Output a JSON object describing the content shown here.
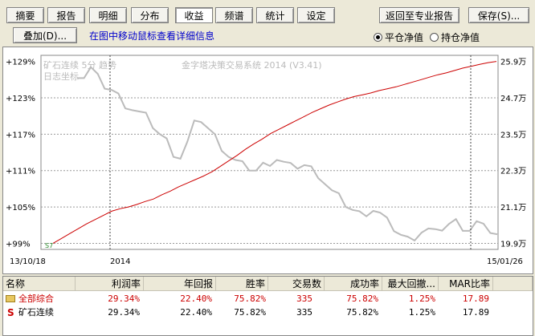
{
  "tabs": [
    {
      "label": "摘要",
      "active": false
    },
    {
      "label": "报告",
      "active": false
    },
    {
      "label": "明细",
      "active": false
    },
    {
      "label": "分布",
      "active": false
    },
    {
      "label": "收益",
      "active": true
    },
    {
      "label": "频谱",
      "active": false
    },
    {
      "label": "统计",
      "active": false
    },
    {
      "label": "设定",
      "active": false
    }
  ],
  "toolbar": {
    "back_report": "返回至专业报告",
    "save": "保存(S)...",
    "overlay": "叠加(D)...",
    "hint": "在图中移动鼠标查看详细信息"
  },
  "radio": {
    "flat": "平仓净值",
    "hold": "持仓净值",
    "selected": "flat"
  },
  "chart": {
    "watermark_line1": "矿石连续 5分 趋势",
    "watermark_line2": "日志坐标",
    "system_title": "金字塔决策交易系统 2014 (V3.41)",
    "left_axis_ticks": [
      "+129%",
      "+123%",
      "+117%",
      "+111%",
      "+105%",
      "+99%"
    ],
    "right_axis_ticks": [
      "25.9万",
      "24.7万",
      "23.5万",
      "22.3万",
      "21.1万",
      "19.9万"
    ],
    "start_date": "13/10/18",
    "mid_date": "2014",
    "end_date": "15/01/26",
    "start_marker": "S7"
  },
  "chart_data": {
    "type": "line",
    "x_start": "13/10/18",
    "x_end": "15/01/26",
    "y_left_range": [
      "+99%",
      "+129%"
    ],
    "y_right_range": [
      "19.9万",
      "25.9万"
    ],
    "grid": true,
    "series": [
      {
        "color": "#cc0000",
        "values": [
          99.0,
          99.8,
          100.6,
          101.4,
          102.2,
          102.9,
          103.6,
          104.3,
          104.7,
          105.0,
          105.4,
          105.9,
          106.3,
          107.0,
          107.6,
          108.3,
          108.9,
          109.5,
          110.1,
          110.8,
          111.7,
          112.6,
          113.5,
          114.5,
          115.4,
          116.2,
          117.1,
          117.8,
          118.5,
          119.2,
          119.9,
          120.6,
          121.2,
          121.8,
          122.3,
          122.8,
          123.2,
          123.5,
          123.8,
          124.2,
          124.5,
          124.8,
          125.2,
          125.6,
          126.0,
          126.4,
          126.8,
          127.1,
          127.5,
          127.9,
          128.2,
          128.5,
          128.8,
          129.0
        ]
      },
      {
        "color": "#bbbbbb",
        "values": [
          127.0,
          126.5,
          127.8,
          126.2,
          125.0,
          124.3,
          123.2,
          122.0,
          121.2,
          120.5,
          119.8,
          118.5,
          117.0,
          115.8,
          114.0,
          113.2,
          115.5,
          118.5,
          119.5,
          118.0,
          116.5,
          115.0,
          113.5,
          112.5,
          111.8,
          111.5,
          111.0,
          111.8,
          112.5,
          113.0,
          112.2,
          111.5,
          111.8,
          111.9,
          111.2,
          110.5,
          109.0,
          107.5,
          106.5,
          105.5,
          104.5,
          103.8,
          104.2,
          104.6,
          103.8,
          102.5,
          101.5,
          100.4,
          99.6,
          100.2,
          101.0,
          101.2,
          100.6,
          101.6,
          102.2,
          102.5,
          101.8,
          101.3,
          102.4,
          101.5,
          101.2,
          100.5
        ]
      }
    ]
  },
  "table": {
    "headers": [
      "名称",
      "利润率",
      "年回报",
      "胜率",
      "交易数",
      "成功率",
      "最大回撤...",
      "MAR比率"
    ],
    "rows": [
      {
        "icon": "folder-icon",
        "name": "全部综合",
        "color": "#cc0000",
        "values": [
          "29.34%",
          "22.40%",
          "75.82%",
          "335",
          "75.82%",
          "1.25%",
          "17.89"
        ]
      },
      {
        "icon": "s",
        "name": "矿石连续",
        "color": "#000000",
        "values": [
          "29.34%",
          "22.40%",
          "75.82%",
          "335",
          "75.82%",
          "1.25%",
          "17.89"
        ]
      }
    ]
  }
}
